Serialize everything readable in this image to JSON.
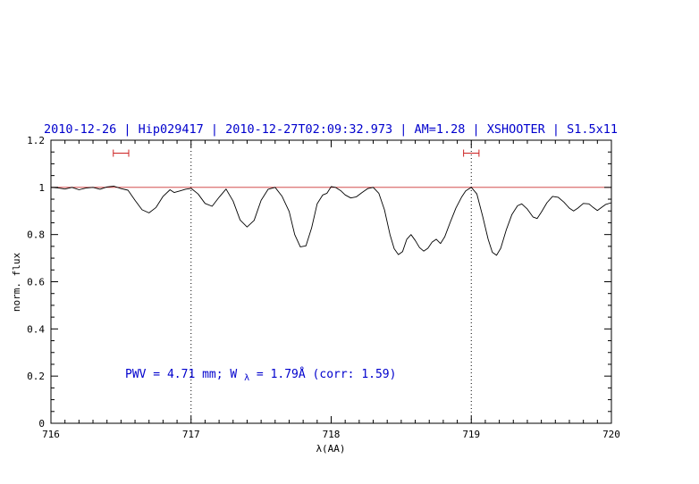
{
  "chart_data": {
    "type": "line",
    "title": "2010-12-26 | Hip029417 | 2010-12-27T02:09:32.973 | AM=1.28 | XSHOOTER | S1.5x11",
    "xlabel": "λ(AA)",
    "ylabel": "norm. flux",
    "xlim": [
      716,
      720
    ],
    "ylim": [
      0,
      1.2
    ],
    "x_major_ticks": [
      716,
      717,
      718,
      719,
      720
    ],
    "x_tick_labels": [
      "716",
      "717",
      "718",
      "719",
      "720"
    ],
    "x_minor_step": 0.1,
    "y_major_ticks": [
      0,
      0.2,
      0.4,
      0.6,
      0.8,
      1,
      1.2
    ],
    "y_tick_labels": [
      "0",
      "0.2",
      "0.4",
      "0.6",
      "0.8",
      "1",
      "1.2"
    ],
    "y_minor_step": 0.05,
    "grid": "off",
    "legend": "none",
    "reference_line_y": 1.0,
    "dotted_lines_x": [
      717,
      719
    ],
    "markers": [
      {
        "x_center": 716.5,
        "half_width": 0.055,
        "y": 1.145
      },
      {
        "x_center": 719.0,
        "half_width": 0.055,
        "y": 1.145
      }
    ],
    "colors": {
      "title": "#0000cd",
      "annotation": "#0000cd",
      "reference": "#cc3333",
      "marker": "#cc2222",
      "spectrum": "#000000"
    },
    "annotation": {
      "pre": "PWV  =  4.71 mm; W",
      "sub": "λ",
      "post": "  =  1.79Å (corr: 1.59)"
    },
    "series": [
      {
        "name": "spectrum",
        "x": [
          716.0,
          716.05,
          716.1,
          716.15,
          716.2,
          716.25,
          716.3,
          716.35,
          716.4,
          716.45,
          716.5,
          716.55,
          716.6,
          716.65,
          716.7,
          716.75,
          716.8,
          716.85,
          716.88,
          716.92,
          716.96,
          717.0,
          717.05,
          717.1,
          717.15,
          717.2,
          717.25,
          717.3,
          717.35,
          717.4,
          717.45,
          717.5,
          717.55,
          717.6,
          717.65,
          717.7,
          717.74,
          717.78,
          717.82,
          717.86,
          717.9,
          717.94,
          717.97,
          718.0,
          718.03,
          718.07,
          718.1,
          718.14,
          718.18,
          718.22,
          718.26,
          718.3,
          718.34,
          718.38,
          718.42,
          718.45,
          718.48,
          718.51,
          718.54,
          718.57,
          718.6,
          718.63,
          718.66,
          718.69,
          718.72,
          718.75,
          718.78,
          718.81,
          718.85,
          718.89,
          718.93,
          718.96,
          719.0,
          719.04,
          719.08,
          719.12,
          719.15,
          719.18,
          719.21,
          719.25,
          719.29,
          719.33,
          719.36,
          719.4,
          719.44,
          719.47,
          719.5,
          719.54,
          719.58,
          719.62,
          719.66,
          719.7,
          719.73,
          719.76,
          719.8,
          719.84,
          719.87,
          719.9,
          719.93,
          719.96,
          720.0
        ],
        "y": [
          1.0,
          0.998,
          0.993,
          1.0,
          0.99,
          0.997,
          1.0,
          0.992,
          1.002,
          1.005,
          0.995,
          0.988,
          0.945,
          0.905,
          0.892,
          0.915,
          0.962,
          0.99,
          0.978,
          0.985,
          0.992,
          0.996,
          0.972,
          0.932,
          0.92,
          0.958,
          0.993,
          0.942,
          0.862,
          0.832,
          0.86,
          0.945,
          0.992,
          1.0,
          0.962,
          0.898,
          0.8,
          0.748,
          0.752,
          0.828,
          0.93,
          0.968,
          0.975,
          1.003,
          1.0,
          0.985,
          0.968,
          0.955,
          0.96,
          0.978,
          0.995,
          1.0,
          0.975,
          0.905,
          0.8,
          0.74,
          0.715,
          0.728,
          0.78,
          0.8,
          0.775,
          0.745,
          0.73,
          0.742,
          0.768,
          0.78,
          0.762,
          0.79,
          0.852,
          0.912,
          0.958,
          0.985,
          1.0,
          0.972,
          0.88,
          0.78,
          0.725,
          0.712,
          0.742,
          0.82,
          0.885,
          0.922,
          0.93,
          0.908,
          0.875,
          0.868,
          0.895,
          0.935,
          0.962,
          0.958,
          0.938,
          0.912,
          0.9,
          0.912,
          0.932,
          0.93,
          0.915,
          0.902,
          0.915,
          0.928,
          0.935
        ]
      }
    ]
  }
}
